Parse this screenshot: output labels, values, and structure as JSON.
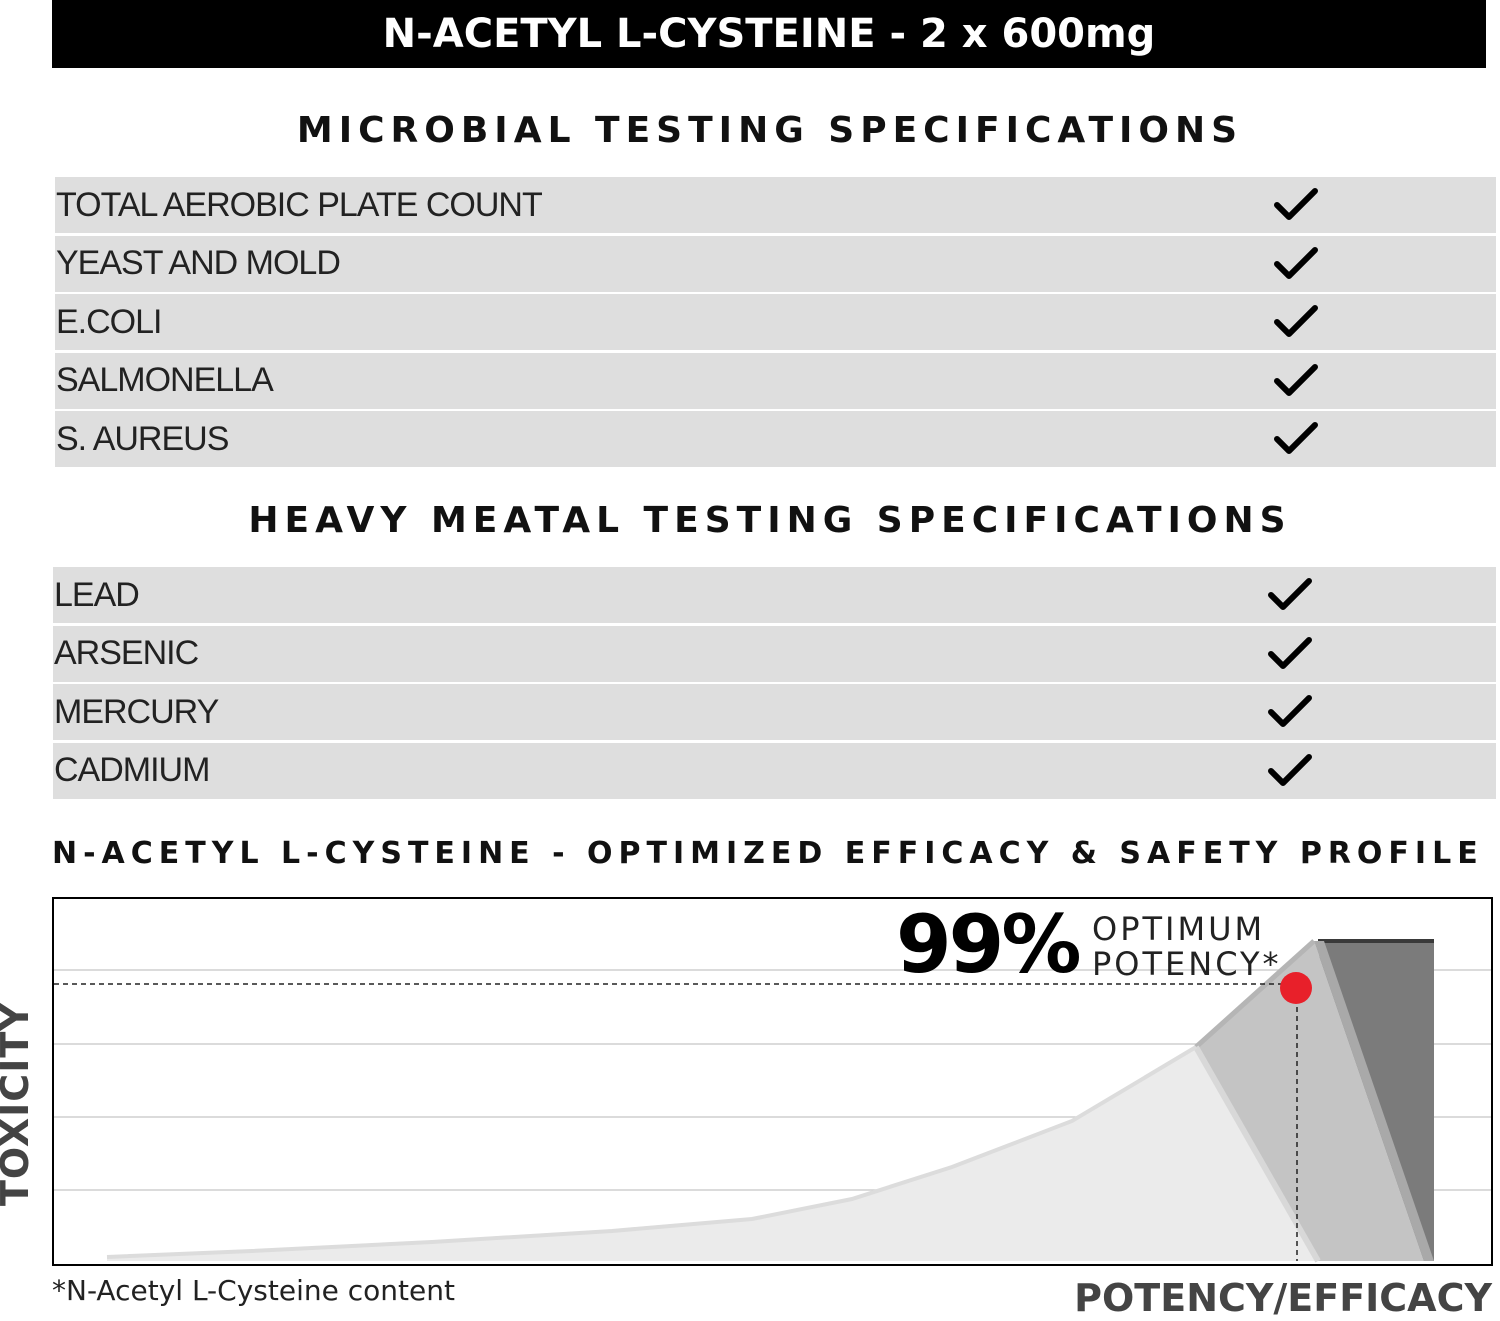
{
  "title": "N-ACETYL L-CYSTEINE - 2 x 600mg",
  "microbial": {
    "heading": "MICROBIAL TESTING SPECIFICATIONS",
    "items": [
      {
        "label": "TOTAL AEROBIC PLATE COUNT",
        "passed": true
      },
      {
        "label": "YEAST AND MOLD",
        "passed": true
      },
      {
        "label": "E.COLI",
        "passed": true
      },
      {
        "label": "SALMONELLA",
        "passed": true
      },
      {
        "label": "S. AUREUS",
        "passed": true
      }
    ]
  },
  "heavy_metal": {
    "heading": "HEAVY MEATAL TESTING SPECIFICATIONS",
    "items": [
      {
        "label": "LEAD",
        "passed": true
      },
      {
        "label": "ARSENIC",
        "passed": true
      },
      {
        "label": "MERCURY",
        "passed": true
      },
      {
        "label": "CADMIUM",
        "passed": true
      }
    ]
  },
  "profile": {
    "heading": "N-ACETYL L-CYSTEINE - OPTIMIZED EFFICACY & SAFETY PROFILE",
    "percent": "99%",
    "optimum_line1": "OPTIMUM",
    "optimum_line2": "POTENCY*",
    "y_axis_label": "TOXICITY",
    "x_axis_label": "POTENCY/EFFICACY",
    "footnote": "*N-Acetyl L-Cysteine content",
    "marker_color": "#e8202a",
    "icons": {
      "check": "checkmark-icon",
      "marker": "marker-dot"
    }
  }
}
